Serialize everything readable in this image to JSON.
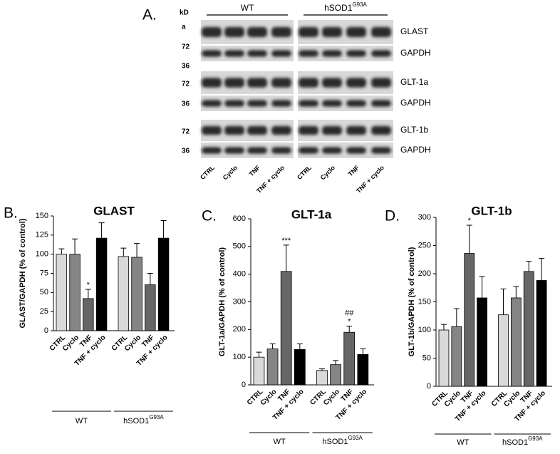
{
  "blot": {
    "panel": "A.",
    "unit": "kD",
    "groups": [
      {
        "name": "WT"
      },
      {
        "name": "hSOD1",
        "name_sup": "G93A"
      }
    ],
    "lanes": [
      "CTRL",
      "Cyclo",
      "TNF",
      "TNF + cyclo"
    ],
    "markers": [
      "a",
      "72",
      "36",
      "72",
      "36",
      "72",
      "36"
    ],
    "rows": [
      "GLAST",
      "GAPDH",
      "GLT-1a",
      "GAPDH",
      "GLT-1b",
      "GAPDH"
    ]
  },
  "chart_data": [
    {
      "type": "bar",
      "panel": "B.",
      "title": "GLAST",
      "y_label": "GLAST/GAPDH (% of control)",
      "categories": [
        "CTRL",
        "Cyclo",
        "TNF",
        "TNF + cyclo"
      ],
      "colors": [
        "#d9d9d9",
        "#858585",
        "#666666",
        "#000000"
      ],
      "ylim": [
        0,
        150
      ],
      "yticks": [
        0,
        25,
        50,
        75,
        100,
        125,
        150
      ],
      "groups": [
        {
          "name": "WT",
          "values": [
            100,
            100,
            42,
            121
          ],
          "errors": [
            7,
            20,
            12,
            20
          ],
          "annotations": [
            null,
            null,
            "*",
            null
          ]
        },
        {
          "name": "hSOD1",
          "name_sup": "G93A",
          "values": [
            97,
            96,
            60,
            121
          ],
          "errors": [
            11,
            18,
            15,
            23
          ],
          "annotations": [
            null,
            null,
            null,
            null
          ]
        }
      ]
    },
    {
      "type": "bar",
      "panel": "C.",
      "title": "GLT-1a",
      "y_label": "GLT-1a/GAPDH (% of control)",
      "categories": [
        "CTRL",
        "Cyclo",
        "TNF",
        "TNF + cyclo"
      ],
      "colors": [
        "#d9d9d9",
        "#858585",
        "#666666",
        "#000000"
      ],
      "ylim": [
        0,
        600
      ],
      "yticks": [
        0,
        100,
        200,
        300,
        400,
        500,
        600
      ],
      "groups": [
        {
          "name": "WT",
          "values": [
            100,
            130,
            410,
            128
          ],
          "errors": [
            18,
            18,
            95,
            20
          ],
          "annotations": [
            null,
            null,
            "***",
            null
          ]
        },
        {
          "name": "hSOD1",
          "name_sup": "G93A",
          "values": [
            52,
            73,
            190,
            110
          ],
          "errors": [
            6,
            15,
            22,
            20
          ],
          "annotations": [
            null,
            null,
            "*",
            null
          ],
          "annotations2": [
            null,
            null,
            "##",
            null
          ]
        }
      ]
    },
    {
      "type": "bar",
      "panel": "D.",
      "title": "GLT-1b",
      "y_label": "GLT-1b/GAPDH (% of control)",
      "categories": [
        "CTRL",
        "Cyclo",
        "TNF",
        "TNF + cyclo"
      ],
      "colors": [
        "#d9d9d9",
        "#858585",
        "#666666",
        "#000000"
      ],
      "ylim": [
        0,
        300
      ],
      "yticks": [
        0,
        50,
        100,
        150,
        200,
        250,
        300
      ],
      "groups": [
        {
          "name": "WT",
          "values": [
            100,
            106,
            236,
            157
          ],
          "errors": [
            10,
            32,
            50,
            38
          ],
          "annotations": [
            null,
            null,
            "*",
            null
          ]
        },
        {
          "name": "hSOD1",
          "name_sup": "G93A",
          "values": [
            127,
            157,
            204,
            188
          ],
          "errors": [
            46,
            20,
            18,
            39
          ],
          "annotations": [
            null,
            null,
            null,
            null
          ]
        }
      ]
    }
  ]
}
